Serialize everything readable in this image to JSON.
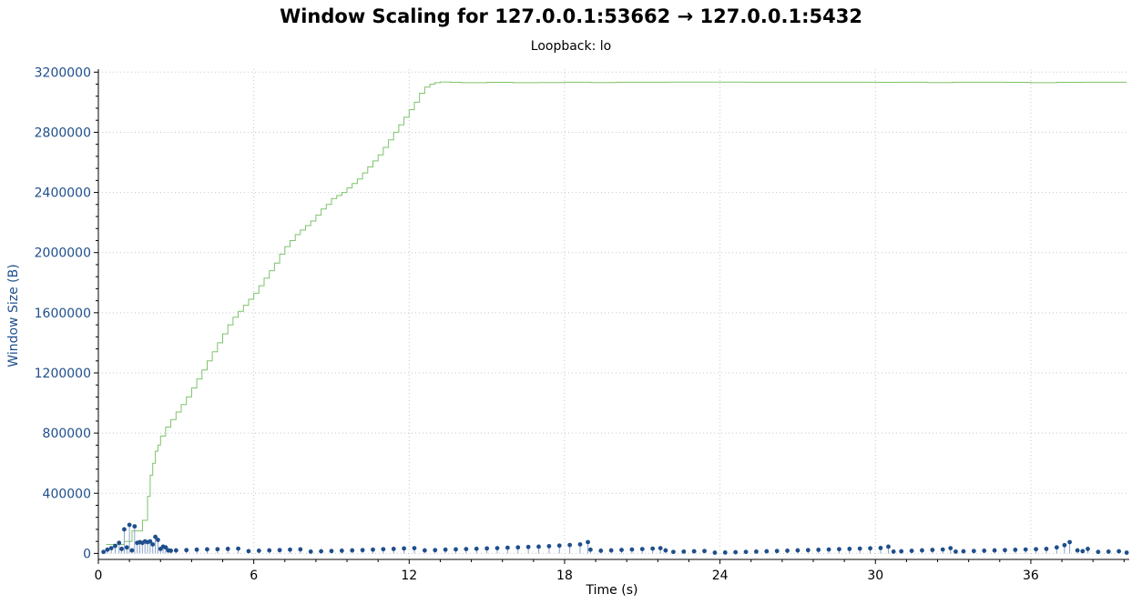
{
  "chart_data": {
    "type": "line",
    "title": "Window Scaling for 127.0.0.1:53662 → 127.0.0.1:5432",
    "subtitle": "Loopback: lo",
    "xlabel": "Time (s)",
    "ylabel": "Window Size (B)",
    "xlim": [
      0,
      39.8
    ],
    "ylim": [
      -40000,
      3220000
    ],
    "x_ticks": [
      "0",
      "6",
      "12",
      "18",
      "24",
      "30",
      "36"
    ],
    "y_ticks": [
      "0",
      "400000",
      "800000",
      "1200000",
      "1600000",
      "2000000",
      "2400000",
      "2800000",
      "3200000"
    ],
    "grid": true,
    "legend": "none",
    "colors": {
      "receive_window": "#7dc36a",
      "bytes_out": "#1f4e8c",
      "grid": "#c8c8c8"
    },
    "series": [
      {
        "type": "step",
        "x": [
          0.3,
          1.0,
          1.3,
          1.7,
          1.9,
          2.0,
          2.1,
          2.2,
          2.3,
          2.4,
          2.6,
          2.8,
          3.0,
          3.2,
          3.4,
          3.6,
          3.8,
          4.0,
          4.2,
          4.4,
          4.6,
          4.8,
          5.0,
          5.2,
          5.4,
          5.6,
          5.8,
          6.0,
          6.2,
          6.4,
          6.6,
          6.8,
          7.0,
          7.2,
          7.4,
          7.6,
          7.8,
          8.0,
          8.2,
          8.4,
          8.6,
          8.8,
          9.0,
          9.2,
          9.4,
          9.6,
          9.8,
          10.0,
          10.2,
          10.4,
          10.6,
          10.8,
          11.0,
          11.2,
          11.4,
          11.6,
          11.8,
          12.0,
          12.2,
          12.4,
          12.6,
          12.8,
          13.0,
          13.2,
          13.4,
          13.6,
          14.0,
          15.0,
          16.0,
          17.0,
          18.0,
          19.0,
          20.0,
          21.0,
          22.0,
          23.0,
          24.0,
          25.0,
          26.0,
          27.0,
          28.0,
          29.0,
          30.0,
          31.0,
          32.0,
          33.0,
          34.0,
          35.0,
          36.0,
          37.0,
          38.0,
          39.0,
          39.7
        ],
        "y": [
          60000,
          80000,
          150000,
          220000,
          380000,
          520000,
          600000,
          680000,
          720000,
          780000,
          840000,
          890000,
          940000,
          990000,
          1040000,
          1100000,
          1160000,
          1220000,
          1280000,
          1340000,
          1400000,
          1460000,
          1520000,
          1570000,
          1610000,
          1650000,
          1690000,
          1730000,
          1780000,
          1830000,
          1880000,
          1930000,
          1990000,
          2040000,
          2080000,
          2120000,
          2150000,
          2180000,
          2210000,
          2250000,
          2290000,
          2320000,
          2360000,
          2380000,
          2400000,
          2430000,
          2460000,
          2490000,
          2530000,
          2570000,
          2610000,
          2650000,
          2700000,
          2750000,
          2800000,
          2850000,
          2900000,
          2950000,
          3000000,
          3060000,
          3100000,
          3120000,
          3130000,
          3135000,
          3135000,
          3132000,
          3130000,
          3132000,
          3130000,
          3131000,
          3133000,
          3131000,
          3133000,
          3133000,
          3134000,
          3134000,
          3134000,
          3133000,
          3133000,
          3133000,
          3133000,
          3133000,
          3132000,
          3133000,
          3131000,
          3133000,
          3133000,
          3132000,
          3130000,
          3132000,
          3133000,
          3133000,
          3133000
        ]
      },
      {
        "type": "scatter",
        "x": [
          0.2,
          0.35,
          0.5,
          0.65,
          0.8,
          0.9,
          1.0,
          1.1,
          1.2,
          1.3,
          1.4,
          1.5,
          1.6,
          1.7,
          1.8,
          1.9,
          2.0,
          2.1,
          2.2,
          2.3,
          2.4,
          2.5,
          2.6,
          2.7,
          2.8,
          3.0,
          3.4,
          3.8,
          4.2,
          4.6,
          5.0,
          5.4,
          5.8,
          6.2,
          6.6,
          7.0,
          7.4,
          7.8,
          8.2,
          8.6,
          9.0,
          9.4,
          9.8,
          10.2,
          10.6,
          11.0,
          11.4,
          11.8,
          12.2,
          12.6,
          13.0,
          13.4,
          13.8,
          14.2,
          14.6,
          15.0,
          15.4,
          15.8,
          16.2,
          16.6,
          17.0,
          17.4,
          17.8,
          18.2,
          18.6,
          18.9,
          19.0,
          19.4,
          19.8,
          20.2,
          20.6,
          21.0,
          21.4,
          21.7,
          21.9,
          22.2,
          22.6,
          23.0,
          23.4,
          23.8,
          24.2,
          24.6,
          25.0,
          25.4,
          25.8,
          26.2,
          26.6,
          27.0,
          27.4,
          27.8,
          28.2,
          28.6,
          29.0,
          29.4,
          29.8,
          30.2,
          30.5,
          30.7,
          31.0,
          31.4,
          31.8,
          32.2,
          32.6,
          32.9,
          33.1,
          33.4,
          33.8,
          34.2,
          34.6,
          35.0,
          35.4,
          35.8,
          36.2,
          36.6,
          37.0,
          37.3,
          37.5,
          37.8,
          38.0,
          38.2,
          38.6,
          39.0,
          39.4,
          39.7
        ],
        "y": [
          10000,
          25000,
          35000,
          50000,
          70000,
          30000,
          160000,
          40000,
          190000,
          20000,
          180000,
          70000,
          75000,
          70000,
          80000,
          75000,
          80000,
          60000,
          110000,
          90000,
          30000,
          45000,
          40000,
          20000,
          18000,
          20000,
          22000,
          25000,
          27000,
          28000,
          30000,
          32000,
          15000,
          18000,
          20000,
          22000,
          25000,
          27000,
          12000,
          14000,
          16000,
          18000,
          20000,
          22000,
          25000,
          28000,
          30000,
          33000,
          35000,
          20000,
          22000,
          25000,
          27000,
          29000,
          31000,
          33000,
          35000,
          38000,
          40000,
          43000,
          45000,
          48000,
          52000,
          56000,
          60000,
          75000,
          25000,
          18000,
          20000,
          23000,
          26000,
          29000,
          32000,
          35000,
          20000,
          10000,
          12000,
          14000,
          16000,
          5000,
          6000,
          8000,
          10000,
          12000,
          14000,
          16000,
          18000,
          20000,
          22000,
          24000,
          26000,
          28000,
          30000,
          32000,
          34000,
          36000,
          45000,
          12000,
          14000,
          17000,
          20000,
          23000,
          26000,
          35000,
          12000,
          14000,
          16000,
          18000,
          20000,
          22000,
          24000,
          26000,
          28000,
          30000,
          40000,
          55000,
          75000,
          20000,
          15000,
          30000,
          10000,
          12000,
          14000,
          5000
        ]
      }
    ]
  }
}
